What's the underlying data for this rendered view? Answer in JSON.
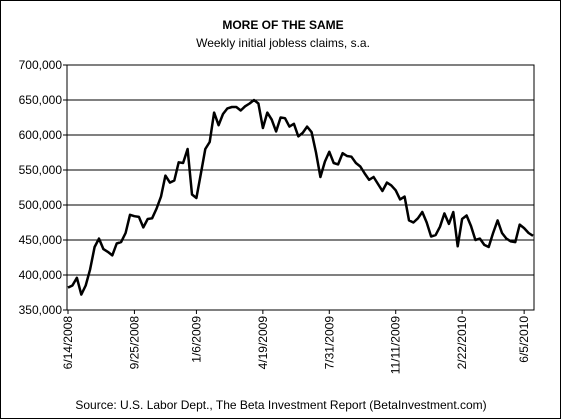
{
  "chart_data": {
    "type": "line",
    "title": "MORE OF THE SAME",
    "subtitle": "Weekly initial jobless claims, s.a.",
    "source": "Source: U.S. Labor Dept., The Beta Investment Report (BetaInvestment.com)",
    "xlabel": "",
    "ylabel": "",
    "ylim": [
      350000,
      700000
    ],
    "y_ticks": [
      {
        "value": 350000,
        "label": "350,000"
      },
      {
        "value": 400000,
        "label": "400,000"
      },
      {
        "value": 450000,
        "label": "450,000"
      },
      {
        "value": 500000,
        "label": "500,000"
      },
      {
        "value": 550000,
        "label": "550,000"
      },
      {
        "value": 600000,
        "label": "600,000"
      },
      {
        "value": 650000,
        "label": "650,000"
      },
      {
        "value": 700000,
        "label": "700,000"
      }
    ],
    "x_ticks": [
      {
        "index": 0,
        "label": "6/14/2008"
      },
      {
        "index": 15,
        "label": "9/25/2008"
      },
      {
        "index": 29,
        "label": "1/6/2009"
      },
      {
        "index": 44,
        "label": "4/19/2009"
      },
      {
        "index": 59,
        "label": "7/31/2009"
      },
      {
        "index": 74,
        "label": "11/11/2009"
      },
      {
        "index": 89,
        "label": "2/22/2010"
      },
      {
        "index": 103,
        "label": "6/5/2010"
      }
    ],
    "grid": true,
    "color": "#000000",
    "series": [
      {
        "values": [
          382000,
          385000,
          396000,
          372000,
          385000,
          408000,
          440000,
          452000,
          437000,
          433000,
          428000,
          445000,
          447000,
          460000,
          486000,
          484000,
          483000,
          468000,
          480000,
          481000,
          495000,
          512000,
          542000,
          532000,
          535000,
          561000,
          560000,
          580000,
          515000,
          510000,
          545000,
          580000,
          590000,
          632000,
          614000,
          630000,
          638000,
          640000,
          640000,
          635000,
          641000,
          645000,
          650000,
          645000,
          610000,
          632000,
          622000,
          605000,
          625000,
          624000,
          612000,
          616000,
          598000,
          603000,
          612000,
          604000,
          575000,
          540000,
          562000,
          576000,
          560000,
          558000,
          574000,
          570000,
          569000,
          560000,
          555000,
          545000,
          536000,
          540000,
          530000,
          520000,
          532000,
          528000,
          521000,
          508000,
          512000,
          478000,
          475000,
          481000,
          490000,
          475000,
          455000,
          457000,
          469000,
          488000,
          473000,
          490000,
          441000,
          480000,
          485000,
          470000,
          450000,
          452000,
          443000,
          440000,
          460000,
          478000,
          460000,
          452000,
          448000,
          447000,
          472000,
          467000,
          460000,
          456000
        ]
      }
    ]
  }
}
